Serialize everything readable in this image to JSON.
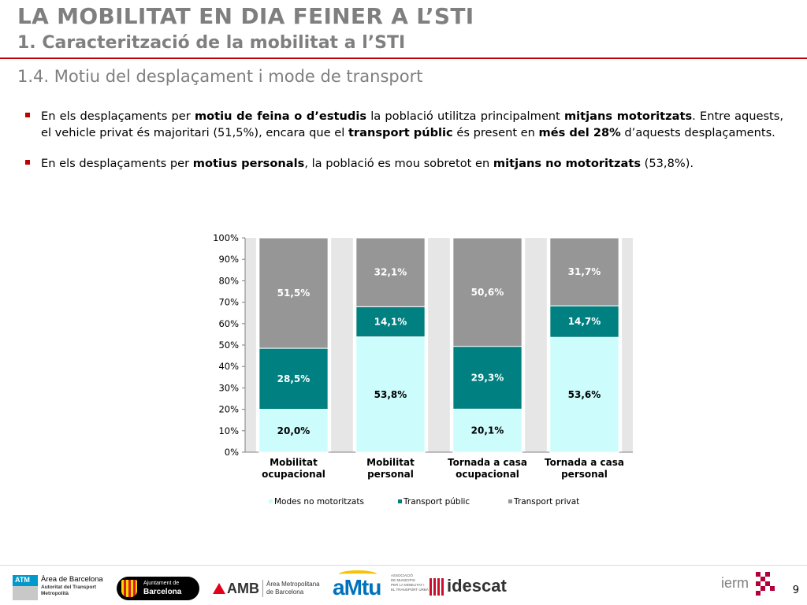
{
  "slide": {
    "title": "LA MOBILITAT EN DIA FEINER A L’STI",
    "subtitle": "1. Caracterització de la mobilitat a l’STI",
    "section": "1.4. Motiu del desplaçament i mode de transport",
    "page_number": "9"
  },
  "bullets": [
    {
      "parts": [
        {
          "t": "En els desplaçaments per "
        },
        {
          "t": "motiu de feina o d’estudis",
          "b": true
        },
        {
          "t": " la població utilitza principalment "
        },
        {
          "t": "mitjans motoritzats",
          "b": true
        },
        {
          "t": ". Entre aquests, el vehicle privat és majoritari (51,5%), encara que el "
        },
        {
          "t": "transport públic",
          "b": true
        },
        {
          "t": " és present en "
        },
        {
          "t": "més del 28%",
          "b": true
        },
        {
          "t": " d’aquests desplaçaments."
        }
      ]
    },
    {
      "parts": [
        {
          "t": "En els desplaçaments per "
        },
        {
          "t": "motius personals",
          "b": true
        },
        {
          "t": ", la població es mou sobretot en "
        },
        {
          "t": "mitjans no motoritzats",
          "b": true
        },
        {
          "t": " (53,8%)."
        }
      ]
    }
  ],
  "chart_data": {
    "type": "bar",
    "stacked": true,
    "categories": [
      [
        "Mobilitat",
        "ocupacional"
      ],
      [
        "Mobilitat",
        "personal"
      ],
      [
        "Tornada a casa",
        "ocupacional"
      ],
      [
        "Tornada a casa",
        "personal"
      ]
    ],
    "series": [
      {
        "name": "Modes no motoritzats",
        "values": [
          20.0,
          53.8,
          20.1,
          53.6
        ],
        "labels": [
          "20,0%",
          "53,8%",
          "20,1%",
          "53,6%"
        ],
        "color": "#ccfcfc",
        "label_color": "#000000"
      },
      {
        "name": "Transport públic",
        "values": [
          28.5,
          14.1,
          29.3,
          14.7
        ],
        "labels": [
          "28,5%",
          "14,1%",
          "29,3%",
          "14,7%"
        ],
        "color": "#008080",
        "label_color": "#ffffff"
      },
      {
        "name": "Transport privat",
        "values": [
          51.5,
          32.1,
          50.6,
          31.7
        ],
        "labels": [
          "51,5%",
          "32,1%",
          "50,6%",
          "31,7%"
        ],
        "color": "#969696",
        "label_color": "#ffffff"
      }
    ],
    "yticks": [
      "0%",
      "10%",
      "20%",
      "30%",
      "40%",
      "50%",
      "60%",
      "70%",
      "80%",
      "90%",
      "100%"
    ],
    "ylim": [
      0,
      100
    ],
    "grid": false,
    "legend": "bottom"
  },
  "footer": {
    "logos": [
      {
        "name": "atm",
        "lines": [
          "ATM",
          "Àrea de Barcelona",
          "Autoritat del Transport",
          "Metropolità"
        ]
      },
      {
        "name": "ajuntament",
        "lines": [
          "Ajuntament de",
          "Barcelona"
        ]
      },
      {
        "name": "amb",
        "lines": [
          "AMB",
          "Àrea Metropolitana",
          "de Barcelona"
        ]
      },
      {
        "name": "amtu",
        "lines": [
          "aMtu",
          "ASSOCIACIÓ",
          "DE MUNICIPIS",
          "PER LA MOBILITAT I",
          "EL TRANSPORT URBÀ"
        ]
      },
      {
        "name": "idescat",
        "lines": [
          "idescat"
        ]
      },
      {
        "name": "ierm",
        "lines": [
          "ierm"
        ]
      }
    ]
  }
}
